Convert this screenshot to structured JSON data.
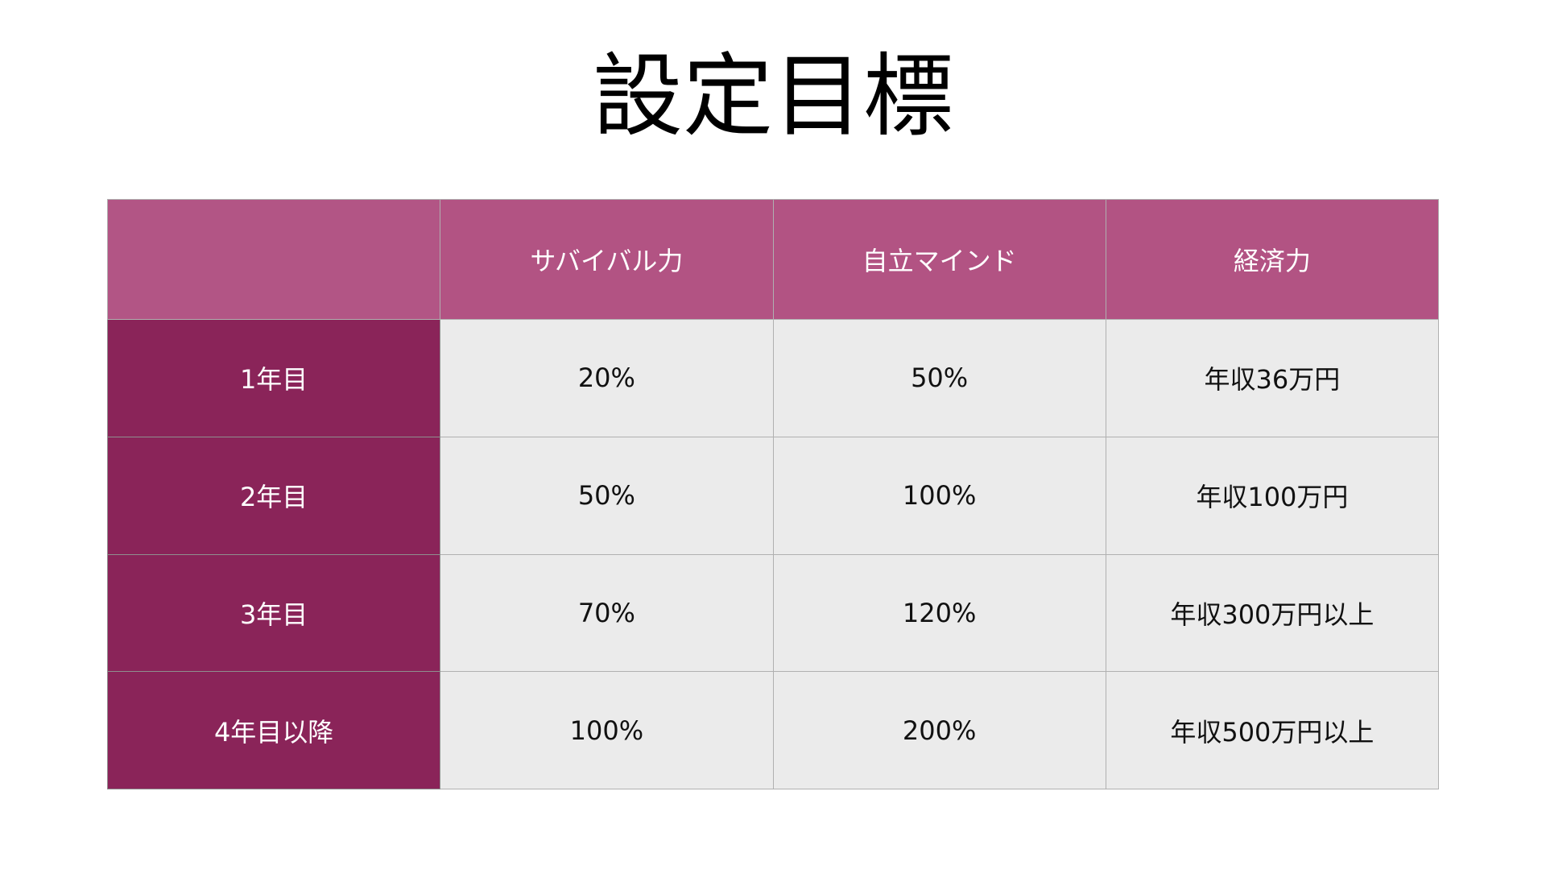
{
  "title": "設定目標",
  "colors": {
    "header": "#b25383",
    "row_header": "#8a2459",
    "cell": "#ebebeb"
  },
  "table": {
    "columns": [
      "",
      "サバイバル力",
      "自立マインド",
      "経済力"
    ],
    "rows": [
      {
        "label": "1年目",
        "values": [
          "20%",
          "50%",
          "年収36万円"
        ]
      },
      {
        "label": "2年目",
        "values": [
          "50%",
          "100%",
          "年収100万円"
        ]
      },
      {
        "label": "3年目",
        "values": [
          "70%",
          "120%",
          "年収300万円以上"
        ]
      },
      {
        "label": "4年目以降",
        "values": [
          "100%",
          "200%",
          "年収500万円以上"
        ]
      }
    ]
  }
}
